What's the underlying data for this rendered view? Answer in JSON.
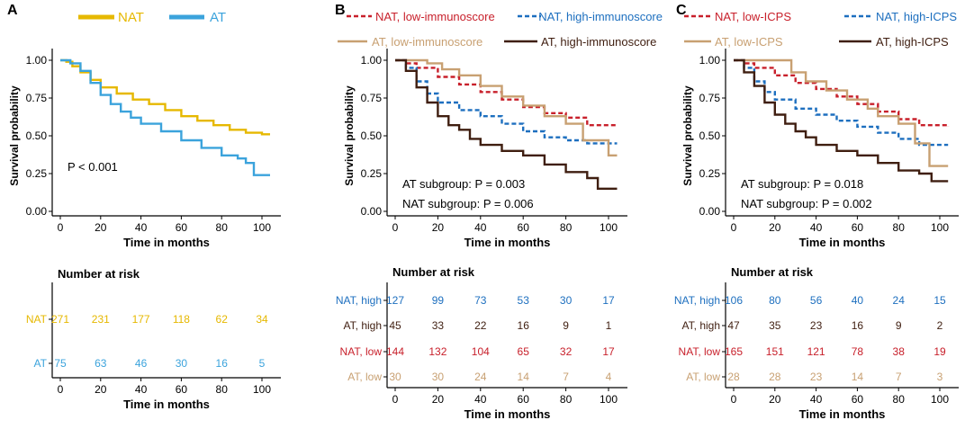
{
  "colors": {
    "nat": "#E6B800",
    "at": "#3BA3DC",
    "nat_low": "#C8202B",
    "nat_high": "#1D6FBF",
    "at_low": "#C8A072",
    "at_high": "#3F1E10"
  },
  "chart_data": [
    {
      "panel": "A",
      "type": "line",
      "subtype": "kaplan-meier",
      "xlabel": "Time in months",
      "ylabel": "Survival probability",
      "xlim": [
        0,
        100
      ],
      "ylim": [
        0,
        1
      ],
      "xticks": [
        "0",
        "20",
        "40",
        "60",
        "80",
        "100"
      ],
      "yticks": [
        "0.00",
        "0.25",
        "0.50",
        "0.75",
        "1.00"
      ],
      "legend_position": "top",
      "annotations": [
        "P < 0.001"
      ],
      "series": [
        {
          "name": "NAT",
          "color_key": "nat",
          "dash": "solid",
          "x": [
            0,
            3,
            6,
            10,
            15,
            20,
            28,
            36,
            44,
            52,
            60,
            68,
            76,
            84,
            92,
            100,
            104
          ],
          "y": [
            1.0,
            0.99,
            0.96,
            0.92,
            0.87,
            0.82,
            0.78,
            0.74,
            0.71,
            0.67,
            0.63,
            0.6,
            0.57,
            0.54,
            0.52,
            0.51,
            0.51
          ]
        },
        {
          "name": "AT",
          "color_key": "at",
          "dash": "solid",
          "x": [
            0,
            5,
            10,
            15,
            20,
            25,
            30,
            35,
            40,
            50,
            60,
            70,
            80,
            88,
            92,
            96,
            104
          ],
          "y": [
            1.0,
            0.98,
            0.93,
            0.85,
            0.77,
            0.71,
            0.66,
            0.62,
            0.58,
            0.53,
            0.47,
            0.42,
            0.37,
            0.35,
            0.32,
            0.24,
            0.24
          ]
        }
      ],
      "risk_table": {
        "title": "Number at risk",
        "xlabel": "Time in months",
        "times": [
          "0",
          "20",
          "40",
          "60",
          "80",
          "100"
        ],
        "rows": [
          {
            "label": "NAT",
            "color_key": "nat",
            "values": [
              "271",
              "231",
              "177",
              "118",
              "62",
              "34"
            ]
          },
          {
            "label": "AT",
            "color_key": "at",
            "values": [
              "75",
              "63",
              "46",
              "30",
              "16",
              "5"
            ]
          }
        ]
      }
    },
    {
      "panel": "B",
      "type": "line",
      "subtype": "kaplan-meier",
      "xlabel": "Time in months",
      "ylabel": "Survival probability",
      "xlim": [
        0,
        100
      ],
      "ylim": [
        0,
        1
      ],
      "xticks": [
        "0",
        "20",
        "40",
        "60",
        "80",
        "100"
      ],
      "yticks": [
        "0.00",
        "0.25",
        "0.50",
        "0.75",
        "1.00"
      ],
      "legend_position": "top",
      "annotations": [
        "AT subgroup: P = 0.003",
        "NAT subgroup: P = 0.006"
      ],
      "series": [
        {
          "name": "NAT, low-immunoscore",
          "color_key": "nat_low",
          "dash": "dashed",
          "x": [
            0,
            5,
            10,
            20,
            30,
            40,
            50,
            60,
            70,
            80,
            90,
            104
          ],
          "y": [
            1.0,
            0.98,
            0.95,
            0.89,
            0.84,
            0.79,
            0.74,
            0.69,
            0.65,
            0.62,
            0.57,
            0.57
          ]
        },
        {
          "name": "NAT, high-immunoscore",
          "color_key": "nat_high",
          "dash": "dashed",
          "x": [
            0,
            5,
            10,
            15,
            20,
            30,
            40,
            50,
            60,
            70,
            80,
            90,
            104
          ],
          "y": [
            1.0,
            0.95,
            0.86,
            0.78,
            0.72,
            0.67,
            0.63,
            0.58,
            0.53,
            0.49,
            0.47,
            0.45,
            0.45
          ]
        },
        {
          "name": "AT, low-immunoscore",
          "color_key": "at_low",
          "dash": "solid",
          "x": [
            0,
            10,
            15,
            22,
            30,
            40,
            50,
            60,
            70,
            80,
            88,
            95,
            100,
            104
          ],
          "y": [
            1.0,
            1.0,
            0.98,
            0.94,
            0.9,
            0.83,
            0.76,
            0.7,
            0.63,
            0.58,
            0.47,
            0.47,
            0.37,
            0.37
          ]
        },
        {
          "name": "AT, high-immunoscore",
          "color_key": "at_high",
          "dash": "solid",
          "x": [
            0,
            5,
            10,
            15,
            20,
            25,
            30,
            35,
            40,
            50,
            60,
            70,
            80,
            90,
            95,
            104
          ],
          "y": [
            1.0,
            0.93,
            0.82,
            0.72,
            0.63,
            0.57,
            0.54,
            0.48,
            0.44,
            0.4,
            0.37,
            0.31,
            0.26,
            0.22,
            0.15,
            0.15
          ]
        }
      ],
      "risk_table": {
        "title": "Number at risk",
        "xlabel": "Time in months",
        "times": [
          "0",
          "20",
          "40",
          "60",
          "80",
          "100"
        ],
        "rows": [
          {
            "label": "NAT, high",
            "color_key": "nat_high",
            "values": [
              "127",
              "99",
              "73",
              "53",
              "30",
              "17"
            ]
          },
          {
            "label": "AT, high",
            "color_key": "at_high",
            "values": [
              "45",
              "33",
              "22",
              "16",
              "9",
              "1"
            ]
          },
          {
            "label": "NAT, low",
            "color_key": "nat_low",
            "values": [
              "144",
              "132",
              "104",
              "65",
              "32",
              "17"
            ]
          },
          {
            "label": "AT, low",
            "color_key": "at_low",
            "values": [
              "30",
              "30",
              "24",
              "14",
              "7",
              "4"
            ]
          }
        ]
      }
    },
    {
      "panel": "C",
      "type": "line",
      "subtype": "kaplan-meier",
      "xlabel": "Time in months",
      "ylabel": "Survival probability",
      "xlim": [
        0,
        100
      ],
      "ylim": [
        0,
        1
      ],
      "xticks": [
        "0",
        "20",
        "40",
        "60",
        "80",
        "100"
      ],
      "yticks": [
        "0.00",
        "0.25",
        "0.50",
        "0.75",
        "1.00"
      ],
      "legend_position": "top",
      "annotations": [
        "AT subgroup: P = 0.018",
        "NAT subgroup: P = 0.002"
      ],
      "series": [
        {
          "name": "NAT, low-ICPS",
          "color_key": "nat_low",
          "dash": "dashed",
          "x": [
            0,
            5,
            10,
            20,
            30,
            40,
            50,
            60,
            70,
            80,
            90,
            104
          ],
          "y": [
            1.0,
            0.98,
            0.95,
            0.9,
            0.85,
            0.81,
            0.76,
            0.71,
            0.66,
            0.61,
            0.57,
            0.56
          ]
        },
        {
          "name": "NAT, high-ICPS",
          "color_key": "nat_high",
          "dash": "dashed",
          "x": [
            0,
            5,
            10,
            15,
            20,
            30,
            40,
            50,
            60,
            70,
            80,
            90,
            104
          ],
          "y": [
            1.0,
            0.95,
            0.86,
            0.79,
            0.74,
            0.68,
            0.64,
            0.6,
            0.56,
            0.52,
            0.48,
            0.44,
            0.44
          ]
        },
        {
          "name": "AT, low-ICPS",
          "color_key": "at_low",
          "dash": "solid",
          "x": [
            0,
            20,
            28,
            35,
            45,
            55,
            65,
            70,
            80,
            88,
            95,
            104
          ],
          "y": [
            1.0,
            1.0,
            0.92,
            0.86,
            0.8,
            0.74,
            0.68,
            0.63,
            0.58,
            0.45,
            0.3,
            0.3
          ]
        },
        {
          "name": "AT, high-ICPS",
          "color_key": "at_high",
          "dash": "solid",
          "x": [
            0,
            5,
            10,
            15,
            20,
            25,
            30,
            35,
            40,
            50,
            60,
            70,
            80,
            90,
            96,
            104
          ],
          "y": [
            1.0,
            0.92,
            0.83,
            0.72,
            0.64,
            0.58,
            0.53,
            0.49,
            0.44,
            0.4,
            0.37,
            0.32,
            0.27,
            0.25,
            0.2,
            0.2
          ]
        }
      ],
      "risk_table": {
        "title": "Number at risk",
        "xlabel": "Time in months",
        "times": [
          "0",
          "20",
          "40",
          "60",
          "80",
          "100"
        ],
        "rows": [
          {
            "label": "NAT, high",
            "color_key": "nat_high",
            "values": [
              "106",
              "80",
              "56",
              "40",
              "24",
              "15"
            ]
          },
          {
            "label": "AT, high",
            "color_key": "at_high",
            "values": [
              "47",
              "35",
              "23",
              "16",
              "9",
              "2"
            ]
          },
          {
            "label": "NAT, low",
            "color_key": "nat_low",
            "values": [
              "165",
              "151",
              "121",
              "78",
              "38",
              "19"
            ]
          },
          {
            "label": "AT, low",
            "color_key": "at_low",
            "values": [
              "28",
              "28",
              "23",
              "14",
              "7",
              "3"
            ]
          }
        ]
      }
    }
  ]
}
